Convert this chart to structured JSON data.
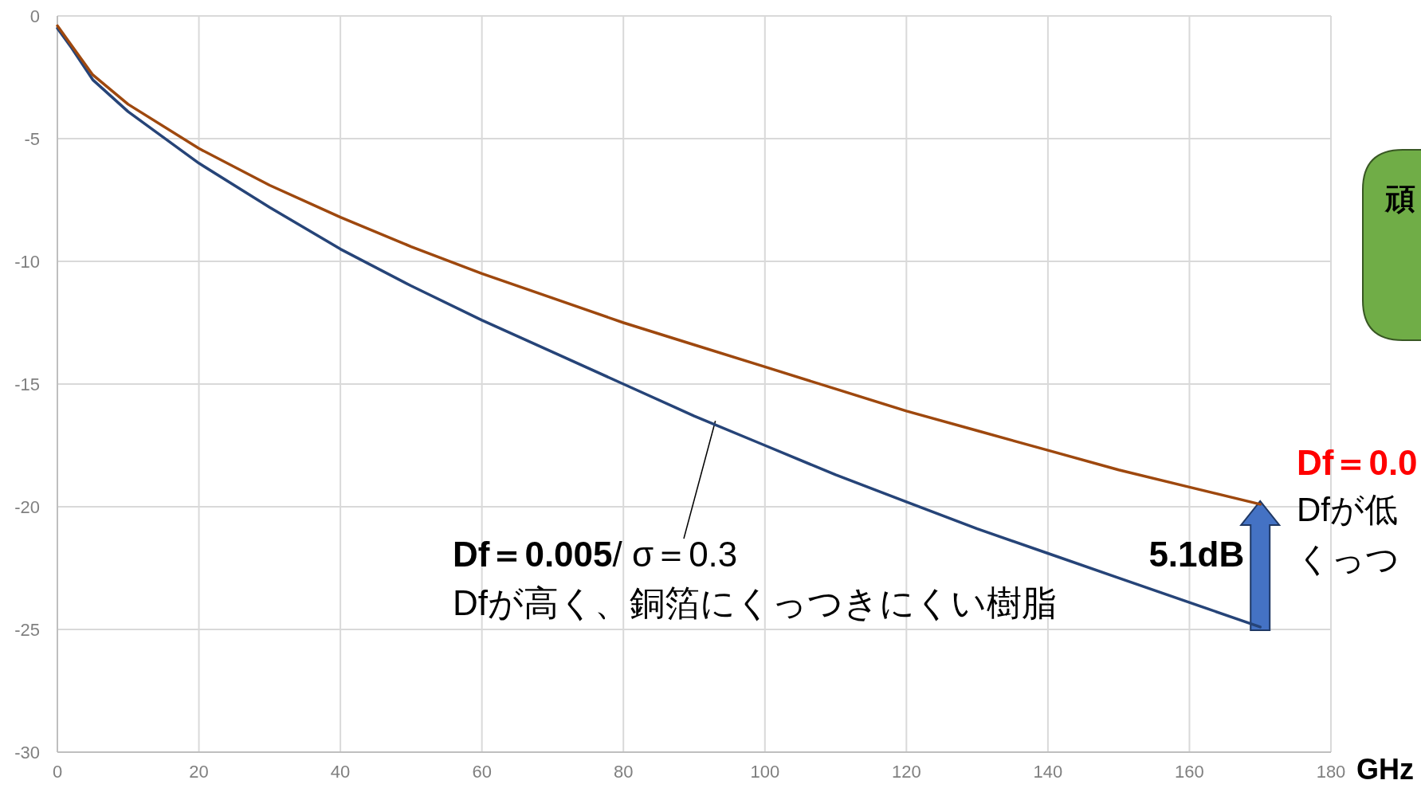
{
  "chart_data": {
    "type": "line",
    "xlabel": "GHz",
    "x": [
      0,
      2,
      5,
      10,
      20,
      30,
      40,
      50,
      60,
      70,
      80,
      90,
      100,
      110,
      120,
      130,
      140,
      150,
      160,
      170
    ],
    "series": [
      {
        "color": "#264478",
        "values": [
          -0.5,
          -1.3,
          -2.6,
          -3.9,
          -6.0,
          -7.8,
          -9.5,
          -11.0,
          -12.4,
          -13.7,
          -15.0,
          -16.3,
          -17.5,
          -18.7,
          -19.8,
          -20.9,
          -21.9,
          -22.9,
          -23.9,
          -24.9
        ]
      },
      {
        "color": "#9e480e",
        "values": [
          -0.4,
          -1.2,
          -2.4,
          -3.6,
          -5.4,
          -6.9,
          -8.2,
          -9.4,
          -10.5,
          -11.5,
          -12.5,
          -13.4,
          -14.3,
          -15.2,
          -16.1,
          -16.9,
          -17.7,
          -18.5,
          -19.2,
          -19.9
        ]
      }
    ],
    "xlim": [
      0,
      180
    ],
    "xticks": [
      0,
      20,
      40,
      60,
      80,
      100,
      120,
      140,
      160,
      180
    ],
    "ylim": [
      -30,
      0
    ],
    "yticks": [
      -30,
      -25,
      -20,
      -15,
      -10,
      -5,
      0
    ],
    "grid": true,
    "marker": "none",
    "line_style": "solid",
    "annotations": [
      {
        "text": "Df＝0.005/ σ＝0.3\nDfが高く、銅箔にくっつきにくい樹脂",
        "x": 93,
        "y": -16.5
      },
      "5.1dB",
      "Df＝0.0",
      "Dfが低",
      "くっつ",
      "頑"
    ]
  }
}
